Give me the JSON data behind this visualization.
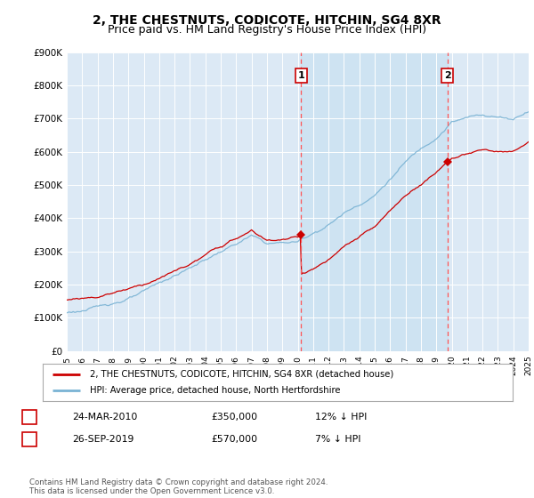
{
  "title": "2, THE CHESTNUTS, CODICOTE, HITCHIN, SG4 8XR",
  "subtitle": "Price paid vs. HM Land Registry's House Price Index (HPI)",
  "background_color": "#ffffff",
  "plot_bg_color": "#dce9f5",
  "grid_color": "#c8d8e8",
  "ylim": [
    0,
    900000
  ],
  "yticks": [
    0,
    100000,
    200000,
    300000,
    400000,
    500000,
    600000,
    700000,
    800000,
    900000
  ],
  "ytick_labels": [
    "£0",
    "£100K",
    "£200K",
    "£300K",
    "£400K",
    "£500K",
    "£600K",
    "£700K",
    "£800K",
    "£900K"
  ],
  "x_start_year": 1995,
  "x_end_year": 2025,
  "hpi_color": "#7ab3d4",
  "price_color": "#cc0000",
  "marker1_year": 2010.22,
  "marker1_value": 350000,
  "marker1_label": "1",
  "marker2_year": 2019.73,
  "marker2_value": 570000,
  "marker2_label": "2",
  "vline_color": "#ff5555",
  "shade_color": "#c5dff0",
  "legend_label_price": "2, THE CHESTNUTS, CODICOTE, HITCHIN, SG4 8XR (detached house)",
  "legend_label_hpi": "HPI: Average price, detached house, North Hertfordshire",
  "table_row1": [
    "1",
    "24-MAR-2010",
    "£350,000",
    "12% ↓ HPI"
  ],
  "table_row2": [
    "2",
    "26-SEP-2019",
    "£570,000",
    "7% ↓ HPI"
  ],
  "footer": "Contains HM Land Registry data © Crown copyright and database right 2024.\nThis data is licensed under the Open Government Licence v3.0.",
  "title_fontsize": 10,
  "subtitle_fontsize": 9
}
